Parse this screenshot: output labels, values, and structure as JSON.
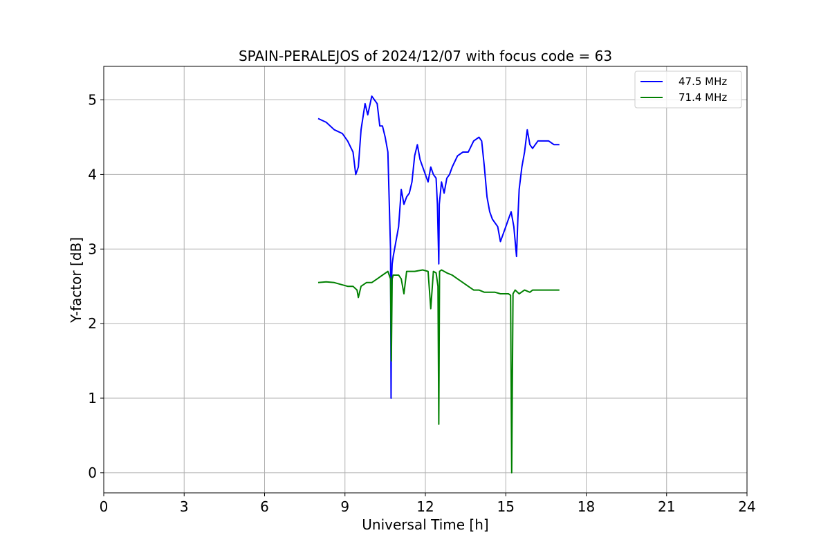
{
  "chart_data": {
    "type": "line",
    "title": "SPAIN-PERALEJOS of 2024/12/07 with focus code = 63",
    "xlabel": "Universal Time [h]",
    "ylabel": "Y-factor [dB]",
    "xlim": [
      0,
      24
    ],
    "ylim": [
      -0.27,
      5.45
    ],
    "xticks": [
      0,
      3,
      6,
      9,
      12,
      15,
      18,
      21,
      24
    ],
    "yticks": [
      0,
      1,
      2,
      3,
      4,
      5
    ],
    "grid": true,
    "legend_position": "top-right",
    "series": [
      {
        "name": "47.5 MHz",
        "color": "#0000ff",
        "x": [
          8.0,
          8.3,
          8.6,
          8.9,
          9.1,
          9.3,
          9.4,
          9.5,
          9.6,
          9.75,
          9.85,
          10.0,
          10.1,
          10.2,
          10.3,
          10.4,
          10.5,
          10.6,
          10.7,
          10.72,
          10.74,
          10.76,
          10.8,
          10.9,
          11.0,
          11.1,
          11.2,
          11.3,
          11.4,
          11.5,
          11.6,
          11.7,
          11.8,
          11.9,
          12.0,
          12.1,
          12.2,
          12.3,
          12.4,
          12.45,
          12.5,
          12.52,
          12.6,
          12.7,
          12.8,
          12.9,
          13.0,
          13.2,
          13.4,
          13.6,
          13.8,
          14.0,
          14.1,
          14.2,
          14.3,
          14.4,
          14.5,
          14.7,
          14.8,
          14.9,
          15.0,
          15.1,
          15.2,
          15.3,
          15.4,
          15.45,
          15.5,
          15.6,
          15.7,
          15.8,
          15.9,
          16.0,
          16.2,
          16.4,
          16.6,
          16.8,
          17.0
        ],
        "y": [
          4.75,
          4.7,
          4.6,
          4.55,
          4.45,
          4.3,
          4.0,
          4.1,
          4.6,
          4.95,
          4.8,
          5.05,
          5.0,
          4.95,
          4.65,
          4.65,
          4.5,
          4.3,
          3.0,
          1.0,
          2.6,
          2.8,
          2.9,
          3.1,
          3.3,
          3.8,
          3.6,
          3.7,
          3.75,
          3.9,
          4.25,
          4.4,
          4.2,
          4.1,
          4.0,
          3.9,
          4.1,
          4.0,
          3.95,
          3.6,
          2.8,
          3.6,
          3.9,
          3.75,
          3.95,
          4.0,
          4.1,
          4.25,
          4.3,
          4.3,
          4.45,
          4.5,
          4.45,
          4.1,
          3.7,
          3.5,
          3.4,
          3.3,
          3.1,
          3.2,
          3.3,
          3.4,
          3.5,
          3.3,
          2.9,
          3.4,
          3.8,
          4.1,
          4.3,
          4.6,
          4.4,
          4.35,
          4.45,
          4.45,
          4.45,
          4.4,
          4.4
        ]
      },
      {
        "name": "71.4 MHz",
        "color": "#008000",
        "x": [
          8.0,
          8.3,
          8.6,
          8.9,
          9.1,
          9.3,
          9.45,
          9.5,
          9.6,
          9.8,
          10.0,
          10.2,
          10.4,
          10.6,
          10.7,
          10.73,
          10.76,
          10.8,
          11.0,
          11.1,
          11.2,
          11.3,
          11.6,
          11.9,
          12.1,
          12.2,
          12.3,
          12.4,
          12.47,
          12.5,
          12.53,
          12.6,
          12.8,
          13.0,
          13.2,
          13.4,
          13.6,
          13.8,
          14.0,
          14.2,
          14.4,
          14.6,
          14.8,
          15.0,
          15.1,
          15.18,
          15.22,
          15.27,
          15.35,
          15.5,
          15.7,
          15.9,
          16.0,
          16.2,
          16.4,
          16.6,
          16.8,
          17.0
        ],
        "y": [
          2.55,
          2.56,
          2.55,
          2.52,
          2.5,
          2.5,
          2.45,
          2.35,
          2.5,
          2.55,
          2.55,
          2.6,
          2.65,
          2.7,
          2.6,
          1.5,
          2.6,
          2.65,
          2.65,
          2.6,
          2.4,
          2.7,
          2.7,
          2.72,
          2.7,
          2.2,
          2.7,
          2.68,
          2.5,
          0.65,
          2.7,
          2.72,
          2.68,
          2.65,
          2.6,
          2.55,
          2.5,
          2.45,
          2.45,
          2.42,
          2.42,
          2.42,
          2.4,
          2.4,
          2.4,
          2.38,
          0.0,
          2.4,
          2.45,
          2.4,
          2.45,
          2.42,
          2.45,
          2.45,
          2.45,
          2.45,
          2.45,
          2.45
        ]
      }
    ]
  }
}
